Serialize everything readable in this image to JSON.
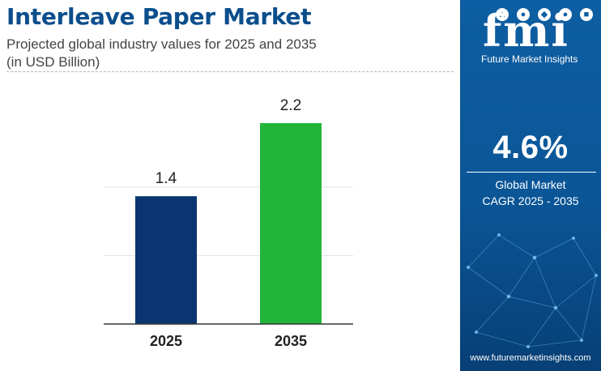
{
  "header": {
    "title": "Interleave Paper Market",
    "subtitle_line1": "Projected global industry values for 2025 and 2035",
    "subtitle_line2": "(in USD Billion)"
  },
  "colors": {
    "bar_2025": "#0a3570",
    "bar_2035": "#22b53a",
    "title": "#0b4e8c",
    "panel": "#0d5ea2"
  },
  "chart_data": {
    "type": "bar",
    "categories": [
      "2025",
      "2035"
    ],
    "values": [
      1.4,
      2.2
    ],
    "value_labels": [
      "1.4",
      "2.2"
    ],
    "title": "Interleave Paper Market",
    "xlabel": "",
    "ylabel": "",
    "ylim": [
      0,
      2.2
    ],
    "grid": true,
    "legend": "none"
  },
  "brand": {
    "logo": "fmi",
    "name": "Future Market Insights",
    "website": "www.futuremarketinsights.com",
    "icon_names": [
      "chart-icon",
      "cart-icon",
      "flask-icon",
      "person-icon",
      "car-icon"
    ]
  },
  "cagr": {
    "value": "4.6%",
    "label_line1": "Global Market",
    "label_line2": "CAGR 2025 - 2035"
  }
}
